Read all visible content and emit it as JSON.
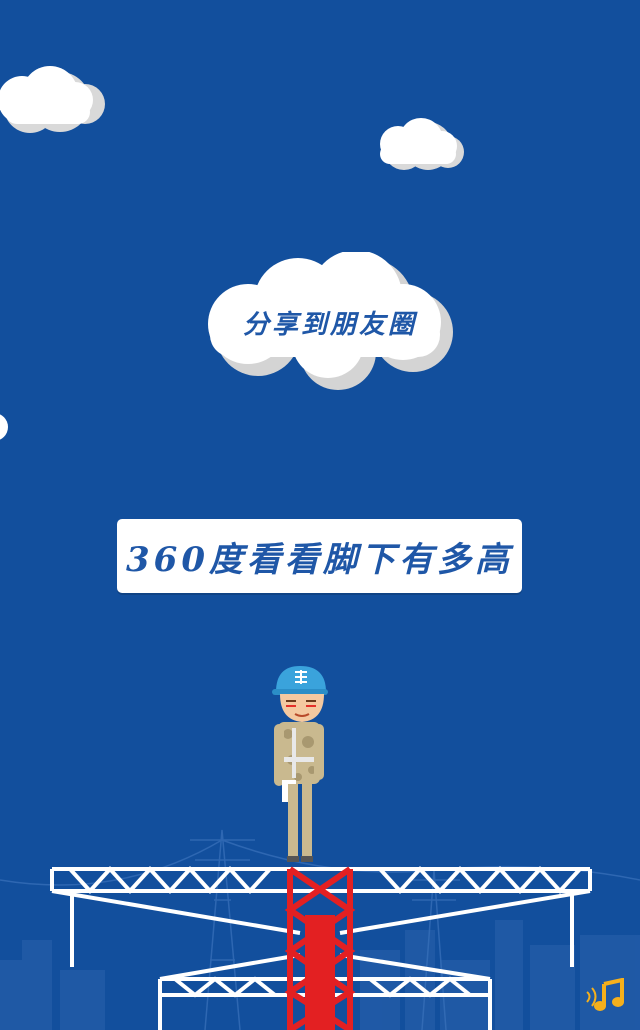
{
  "share": {
    "label": "分享到朋友圈"
  },
  "title": {
    "label": "360度看看脚下有多高"
  },
  "colors": {
    "sky": "#124f9d",
    "cloud": "#ffffff",
    "cloud_shadow": "#d9d9d9",
    "text_blue": "#1f57a7",
    "truss": "#ffffff",
    "tower": "#e32022",
    "music_icon": "#f5b01c"
  },
  "icons": {
    "music": "music-note-icon",
    "helmet_badge": "company-logo-icon"
  }
}
